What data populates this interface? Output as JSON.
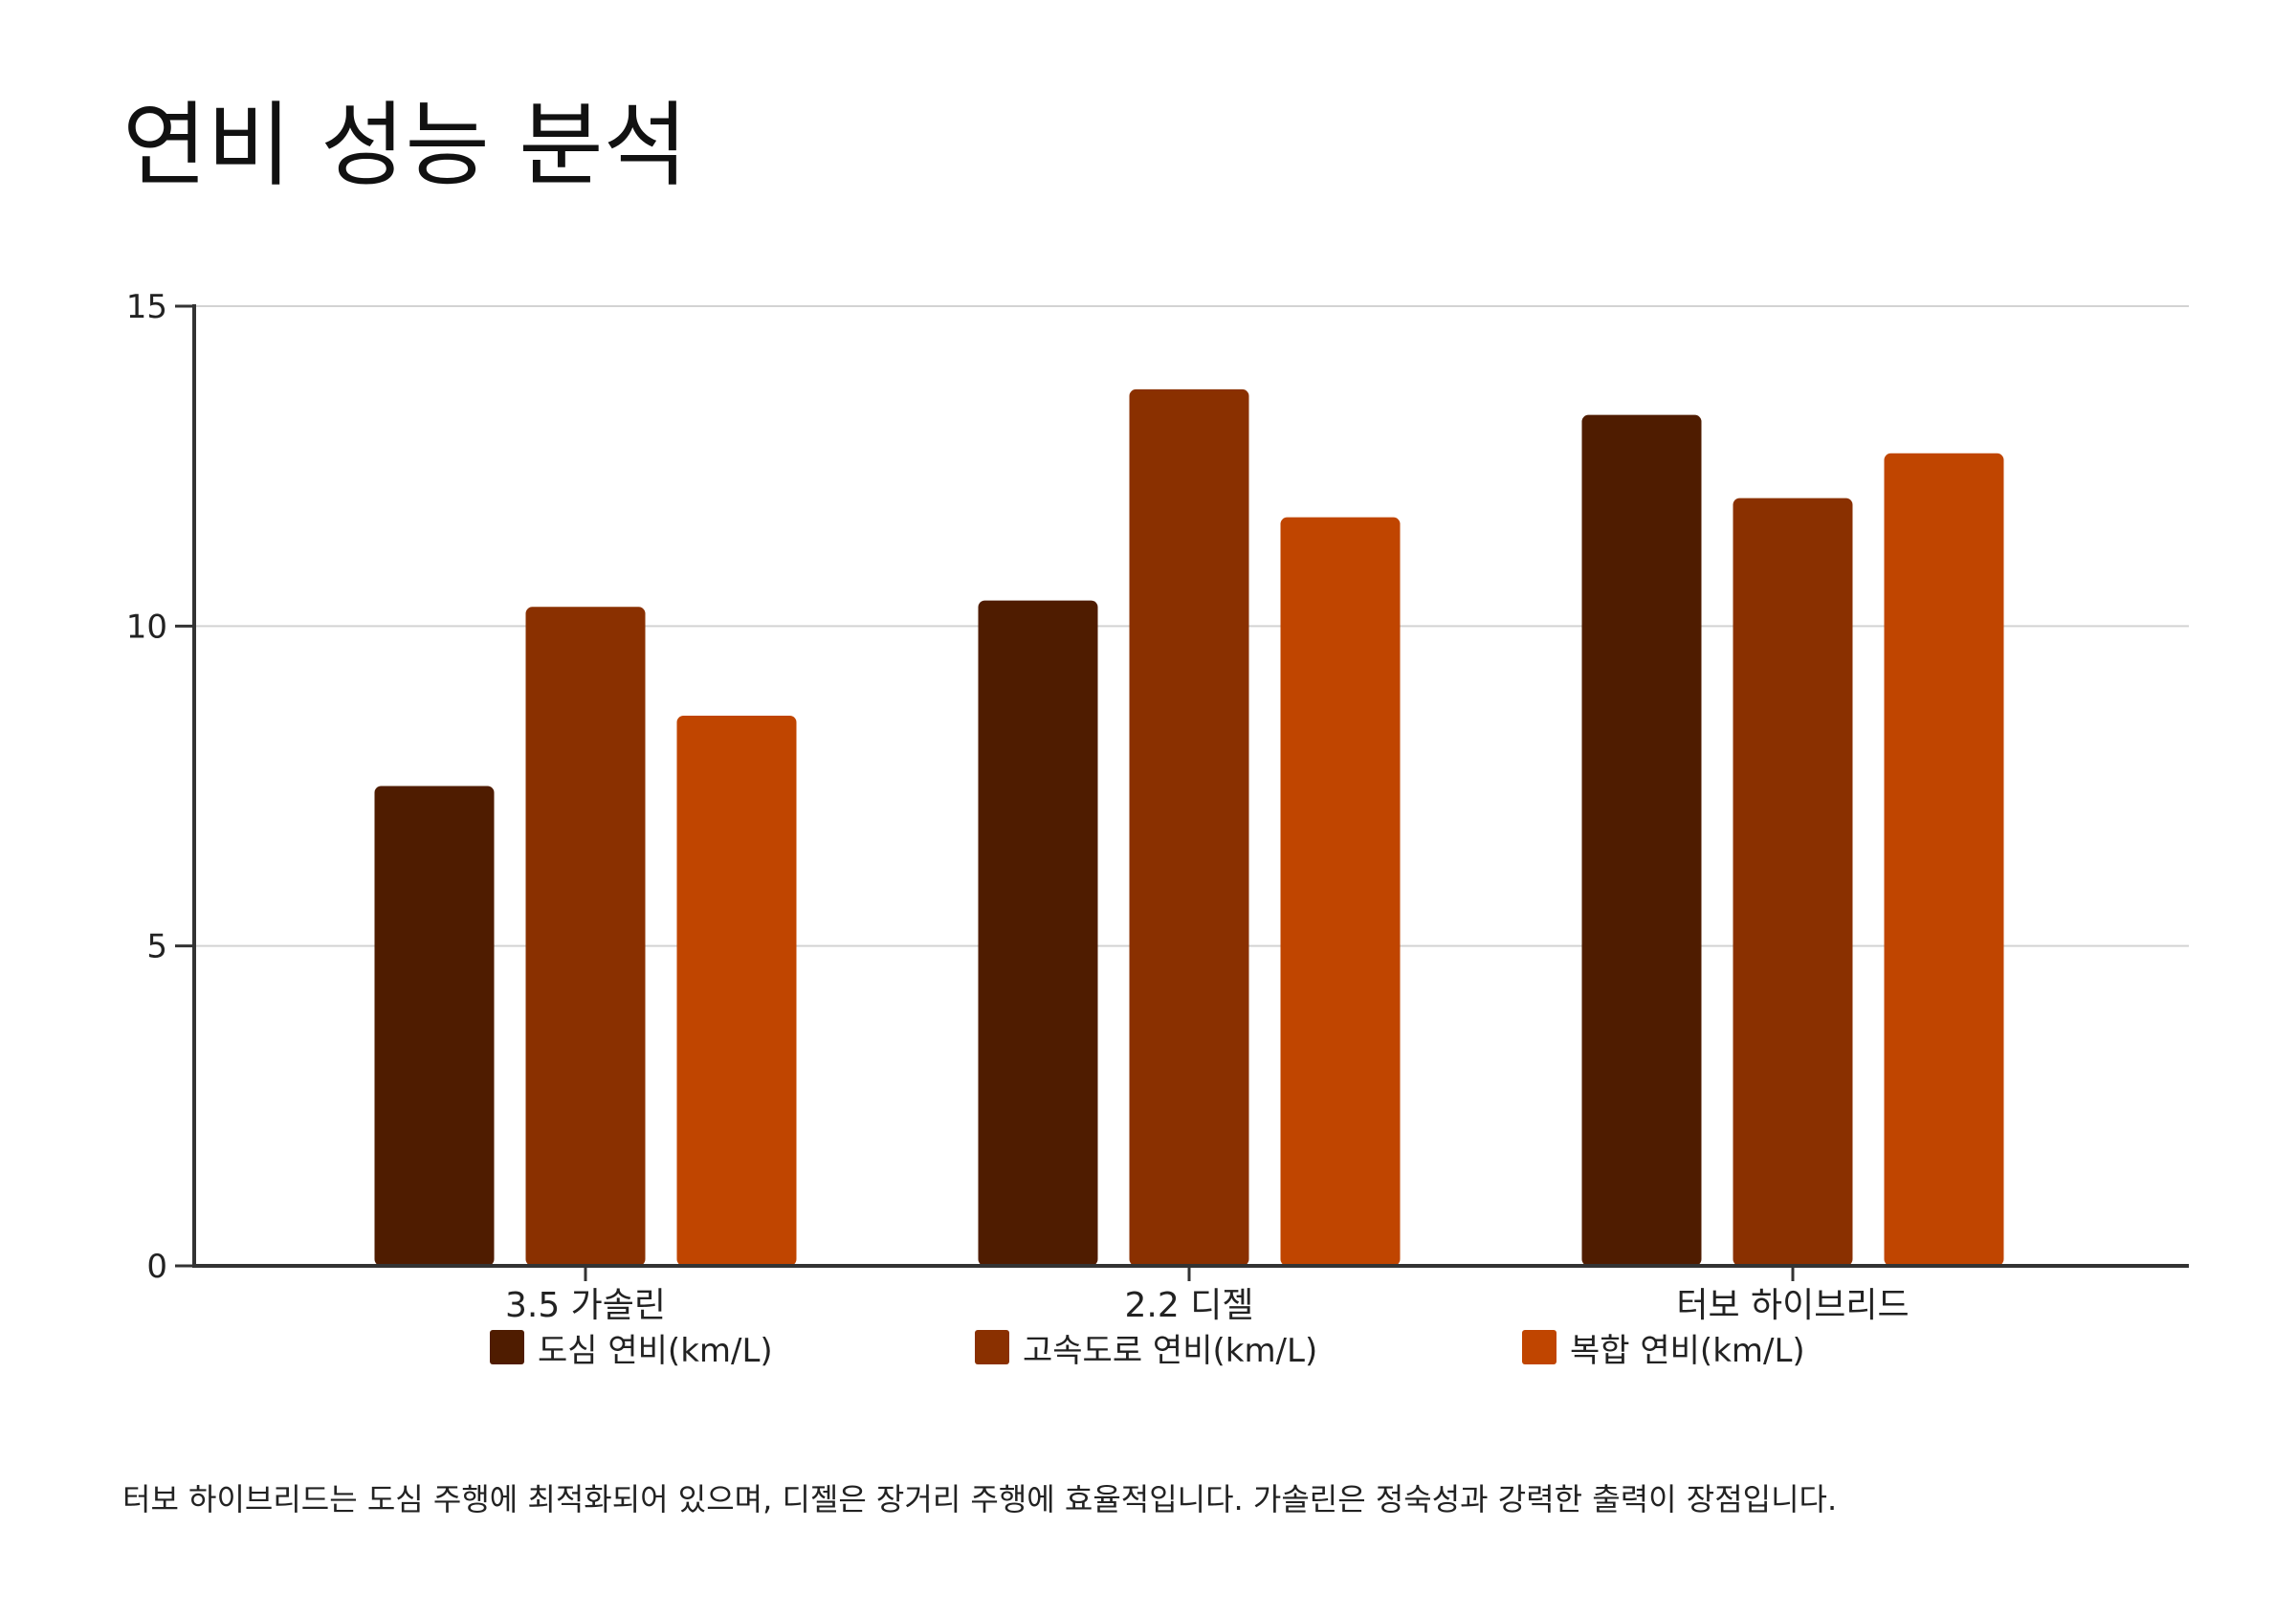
{
  "title": "연비 성능 분석",
  "caption": "터보 하이브리드는 도심 주행에 최적화되어 있으며, 디젤은 장거리 주행에 효율적입니다. 가솔린은 정숙성과 강력한 출력이 장점입니다.",
  "colors": {
    "series_1": "#4f1c00",
    "series_2": "#8a3000",
    "series_3": "#c04500",
    "gridline": "#d3d3d3",
    "axis": "#333333"
  },
  "chart_data": {
    "type": "bar",
    "title": "",
    "xlabel": "",
    "ylabel": "",
    "categories": [
      "3.5 가솔린",
      "2.2 디젤",
      "터보 하이브리드"
    ],
    "series": [
      {
        "name": "도심 연비(km/L)",
        "values": [
          7.5,
          10.4,
          13.3
        ]
      },
      {
        "name": "고속도로 연비(km/L)",
        "values": [
          10.3,
          13.7,
          12.0
        ]
      },
      {
        "name": "복합 연비(km/L)",
        "values": [
          8.6,
          11.7,
          12.7
        ]
      }
    ],
    "ylim": [
      0,
      15
    ],
    "yticks": [
      0,
      5,
      10,
      15
    ],
    "ytick_labels": [
      "0",
      "5",
      "10",
      "15"
    ],
    "grid": true,
    "legend": "bottom"
  }
}
